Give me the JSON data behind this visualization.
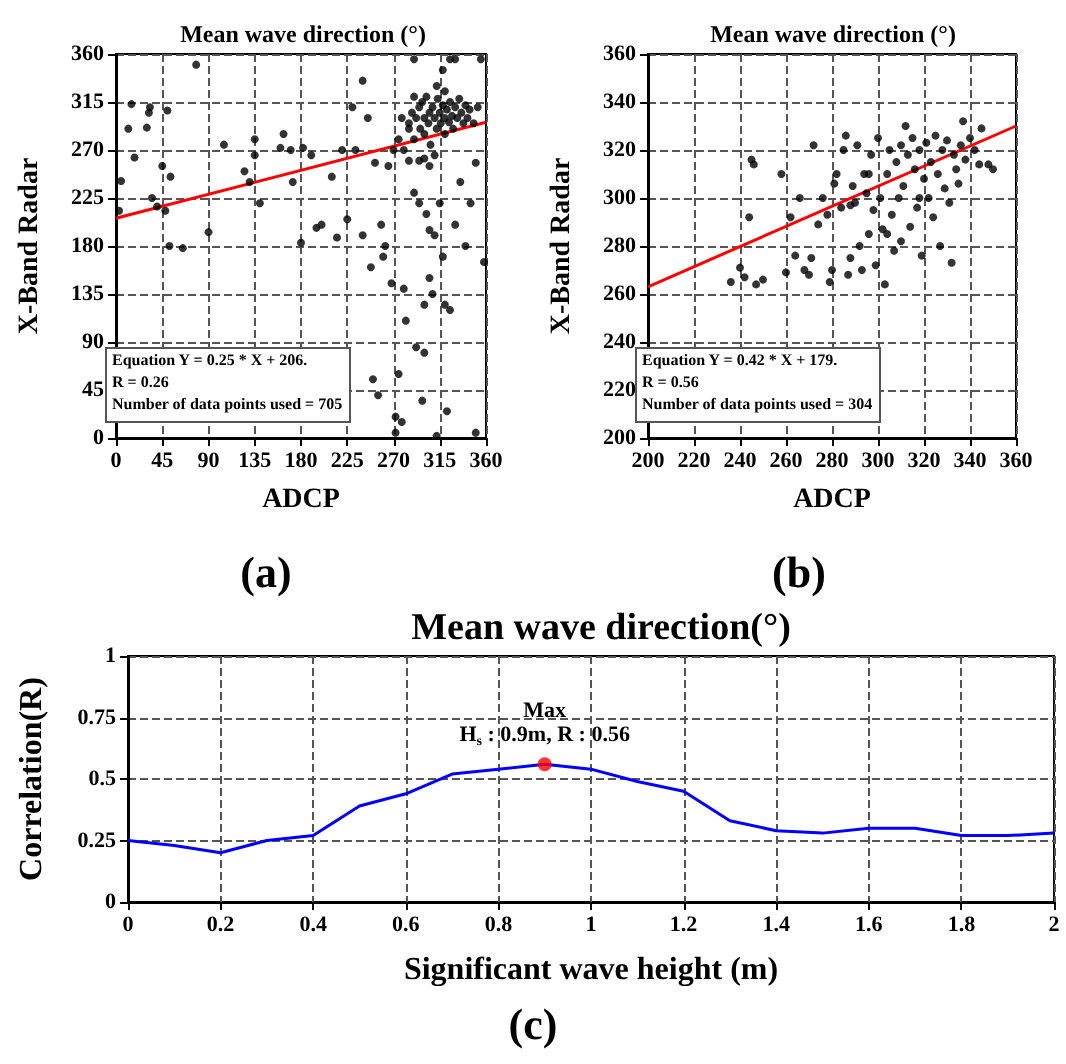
{
  "chart_data": [
    {
      "type": "scatter",
      "title": "Mean wave direction (°)",
      "xlabel": "ADCP",
      "ylabel": "X-Band Radar",
      "xlim": [
        0,
        360
      ],
      "ylim": [
        0,
        360
      ],
      "xticks": [
        0,
        45,
        90,
        135,
        180,
        225,
        270,
        315,
        360
      ],
      "yticks": [
        0,
        45,
        90,
        135,
        180,
        225,
        270,
        315,
        360
      ],
      "grid": true,
      "line_style": "solid",
      "annotations": [
        "Equation Y = 0.25 * X + 206.",
        "R = 0.26",
        "Number of data points used = 705",
        "(a)"
      ],
      "series": [
        {
          "marker": "circle",
          "color": "#000000",
          "x": [
            3,
            5,
            12,
            15,
            18,
            30,
            32,
            33,
            35,
            40,
            45,
            48,
            50,
            52,
            53,
            65,
            78,
            90,
            105,
            125,
            130,
            135,
            135,
            140,
            160,
            163,
            170,
            172,
            180,
            182,
            190,
            195,
            200,
            210,
            215,
            220,
            225,
            230,
            233,
            240,
            240,
            245,
            248,
            250,
            252,
            255,
            258,
            260,
            262,
            265,
            268,
            270,
            272,
            272,
            275,
            278,
            280,
            282,
            285,
            290,
            292,
            295,
            298,
            300,
            300,
            302,
            305,
            305,
            308,
            310,
            312,
            315,
            318,
            320,
            322,
            325,
            330,
            335,
            340,
            345,
            350,
            350,
            358,
            355,
            290,
            330,
            285,
            288,
            290,
            292,
            295,
            296,
            298,
            300,
            300,
            302,
            304,
            305,
            306,
            308,
            310,
            312,
            313,
            315,
            316,
            318,
            320,
            320,
            322,
            324,
            325,
            327,
            328,
            330,
            332,
            334,
            336,
            338,
            340,
            342,
            344,
            300,
            295,
            305,
            310,
            280,
            285,
            275,
            278,
            290,
            320,
            312,
            318,
            325,
            348,
            352
          ],
          "values": [
            213,
            241,
            290,
            313,
            263,
            291,
            305,
            310,
            225,
            217,
            255,
            213,
            307,
            180,
            245,
            178,
            350,
            193,
            275,
            250,
            240,
            265,
            280,
            220,
            272,
            285,
            270,
            240,
            183,
            272,
            265,
            197,
            200,
            245,
            188,
            270,
            205,
            310,
            270,
            190,
            335,
            300,
            160,
            55,
            258,
            40,
            200,
            170,
            180,
            255,
            145,
            270,
            20,
            5,
            60,
            15,
            140,
            110,
            290,
            230,
            85,
            220,
            35,
            80,
            125,
            210,
            195,
            150,
            135,
            190,
            2,
            220,
            170,
            125,
            25,
            120,
            200,
            240,
            180,
            220,
            258,
            5,
            165,
            355,
            355,
            355,
            295,
            305,
            280,
            300,
            310,
            290,
            315,
            300,
            285,
            320,
            295,
            305,
            275,
            310,
            300,
            290,
            318,
            305,
            295,
            312,
            300,
            285,
            308,
            296,
            315,
            302,
            290,
            310,
            300,
            318,
            305,
            295,
            312,
            300,
            308,
            262,
            260,
            255,
            265,
            270,
            260,
            280,
            300,
            320,
            325,
            330,
            345,
            355,
            295,
            310
          ]
        },
        {
          "type": "line",
          "marker": "none",
          "color": "#ff0000",
          "x": [
            0,
            360
          ],
          "values": [
            206,
            296
          ]
        }
      ]
    },
    {
      "type": "scatter",
      "title": "Mean wave direction (°)",
      "xlabel": "ADCP",
      "ylabel": "X-Band Radar",
      "xlim": [
        200,
        360
      ],
      "ylim": [
        200,
        360
      ],
      "xticks": [
        200,
        220,
        240,
        260,
        280,
        300,
        320,
        340,
        360
      ],
      "yticks": [
        200,
        220,
        240,
        260,
        280,
        300,
        320,
        340,
        360
      ],
      "grid": true,
      "line_style": "solid",
      "annotations": [
        "Equation Y = 0.42 * X + 179.",
        "R = 0.56",
        "Number of data points used = 304",
        "(b)"
      ],
      "series": [
        {
          "marker": "circle",
          "color": "#000000",
          "x": [
            236,
            240,
            242,
            244,
            245,
            246,
            247,
            250,
            258,
            260,
            262,
            264,
            266,
            268,
            270,
            271,
            272,
            274,
            276,
            278,
            279,
            280,
            281,
            282,
            284,
            285,
            286,
            287,
            288,
            289,
            290,
            291,
            292,
            293,
            294,
            295,
            296,
            297,
            298,
            299,
            300,
            301,
            302,
            303,
            304,
            305,
            306,
            307,
            308,
            309,
            310,
            311,
            312,
            313,
            314,
            315,
            316,
            317,
            318,
            319,
            320,
            321,
            322,
            323,
            324,
            325,
            326,
            327,
            328,
            329,
            330,
            331,
            332,
            333,
            334,
            335,
            336,
            337,
            338,
            340,
            342,
            344,
            345,
            348,
            350,
            304,
            296,
            288,
            310,
            318
          ],
          "values": [
            265,
            271,
            267,
            292,
            316,
            314,
            264,
            266,
            310,
            269,
            292,
            276,
            300,
            270,
            268,
            275,
            322,
            289,
            300,
            293,
            265,
            270,
            306,
            310,
            296,
            320,
            326,
            268,
            275,
            305,
            298,
            322,
            280,
            270,
            310,
            302,
            285,
            318,
            295,
            272,
            325,
            300,
            287,
            264,
            310,
            320,
            293,
            278,
            315,
            300,
            322,
            305,
            330,
            318,
            288,
            325,
            312,
            296,
            320,
            276,
            308,
            323,
            300,
            315,
            292,
            326,
            310,
            280,
            320,
            304,
            324,
            298,
            273,
            318,
            312,
            306,
            322,
            332,
            316,
            325,
            320,
            314,
            329,
            314,
            312,
            285,
            310,
            297,
            282,
            300
          ]
        },
        {
          "type": "line",
          "marker": "none",
          "color": "#ff0000",
          "x": [
            200,
            360
          ],
          "values": [
            263,
            330
          ]
        }
      ]
    },
    {
      "type": "line",
      "title": "Mean wave direction(°)",
      "xlabel": "Significant wave height (m)",
      "ylabel": "Correlation(R)",
      "xlim": [
        0,
        2
      ],
      "ylim": [
        0,
        1
      ],
      "xticks": [
        0,
        0.2,
        0.4,
        0.6,
        0.8,
        1,
        1.2,
        1.4,
        1.6,
        1.8,
        2
      ],
      "yticks": [
        0,
        0.25,
        0.5,
        0.75,
        1
      ],
      "grid": true,
      "line_style": "solid",
      "annotations": [
        {
          "text": "Max",
          "x": 0.9,
          "y": 0.56
        },
        {
          "text": "H$_{s}$ : 0.9m, R : 0.56",
          "x": 0.9,
          "y": 0.56
        },
        "(c)"
      ],
      "series": [
        {
          "marker": "none",
          "color": "#0000ff",
          "x": [
            0,
            0.1,
            0.2,
            0.3,
            0.4,
            0.5,
            0.6,
            0.7,
            0.8,
            0.9,
            1,
            1.1,
            1.2,
            1.3,
            1.4,
            1.5,
            1.6,
            1.7,
            1.8,
            1.9,
            2
          ],
          "values": [
            0.25,
            0.23,
            0.2,
            0.25,
            0.27,
            0.39,
            0.44,
            0.52,
            0.54,
            0.56,
            0.54,
            0.49,
            0.45,
            0.33,
            0.29,
            0.28,
            0.3,
            0.3,
            0.27,
            0.27,
            0.28
          ]
        },
        {
          "type": "scatter",
          "marker": "circle",
          "color": "#ff0000",
          "x": [
            0.9
          ],
          "values": [
            0.56
          ]
        }
      ]
    }
  ]
}
